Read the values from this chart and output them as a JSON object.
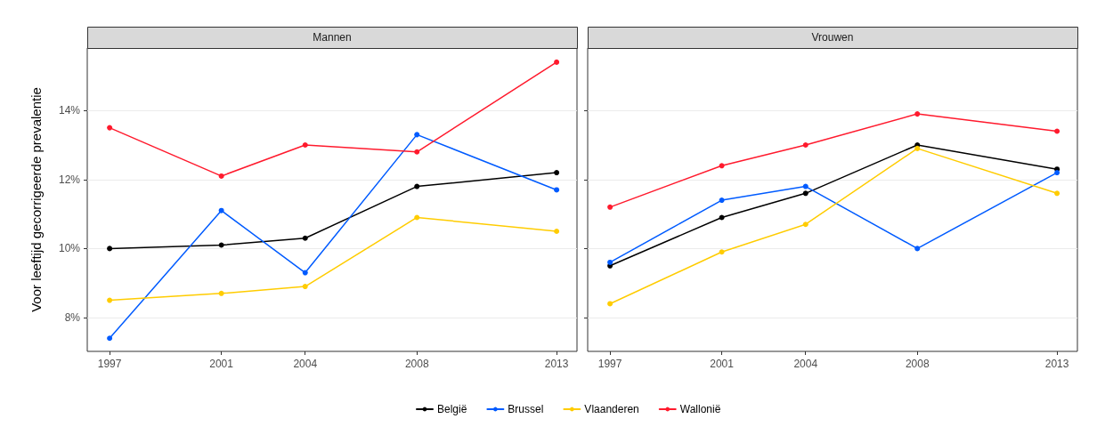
{
  "chart_data": [
    {
      "type": "line",
      "title": "Mannen",
      "ylabel": "Voor leeftijd gecorrigeerde prevalentie",
      "x": [
        1997,
        2001,
        2004,
        2008,
        2013
      ],
      "xlim": [
        1996.2,
        2013.73
      ],
      "xticks": [
        1997,
        2001,
        2004,
        2008,
        2013
      ],
      "ylim": [
        7.02,
        15.81
      ],
      "yticks": [
        {
          "value": 8,
          "label": "8%"
        },
        {
          "value": 10,
          "label": "10%"
        },
        {
          "value": 12,
          "label": "12%"
        },
        {
          "value": 14,
          "label": "14%"
        }
      ],
      "grid": "y",
      "legend": "bottom",
      "marker": "circle",
      "line_style": "solid",
      "series": [
        {
          "name": "België",
          "color": "#000000",
          "values": [
            10.0,
            10.1,
            10.3,
            11.8,
            12.2
          ]
        },
        {
          "name": "Brussel",
          "color": "#005bff",
          "values": [
            7.4,
            11.1,
            9.3,
            13.3,
            11.7
          ]
        },
        {
          "name": "Vlaanderen",
          "color": "#ffcc00",
          "values": [
            8.5,
            8.7,
            8.9,
            10.9,
            10.5
          ]
        },
        {
          "name": "Wallonië",
          "color": "#ff1a2d",
          "values": [
            13.5,
            12.1,
            13.0,
            12.8,
            15.4
          ]
        }
      ]
    },
    {
      "type": "line",
      "title": "Vrouwen",
      "x": [
        1997,
        2001,
        2004,
        2008,
        2013
      ],
      "xlim": [
        1996.2,
        2013.73
      ],
      "xticks": [
        1997,
        2001,
        2004,
        2008,
        2013
      ],
      "ylim": [
        7.02,
        15.81
      ],
      "yticks": [
        8,
        10,
        12,
        14
      ],
      "grid": "y",
      "tick_labels": "x",
      "marker": "circle",
      "line_style": "solid",
      "series": [
        {
          "color": "#000000",
          "values": [
            9.5,
            10.9,
            11.6,
            13.0,
            12.3
          ]
        },
        {
          "color": "#005bff",
          "values": [
            9.6,
            11.4,
            11.8,
            10.0,
            12.2
          ]
        },
        {
          "color": "#ffcc00",
          "values": [
            8.4,
            9.9,
            10.7,
            12.9,
            11.6
          ]
        },
        {
          "color": "#ff1a2d",
          "values": [
            11.2,
            12.4,
            13.0,
            13.9,
            13.4
          ]
        }
      ]
    }
  ]
}
